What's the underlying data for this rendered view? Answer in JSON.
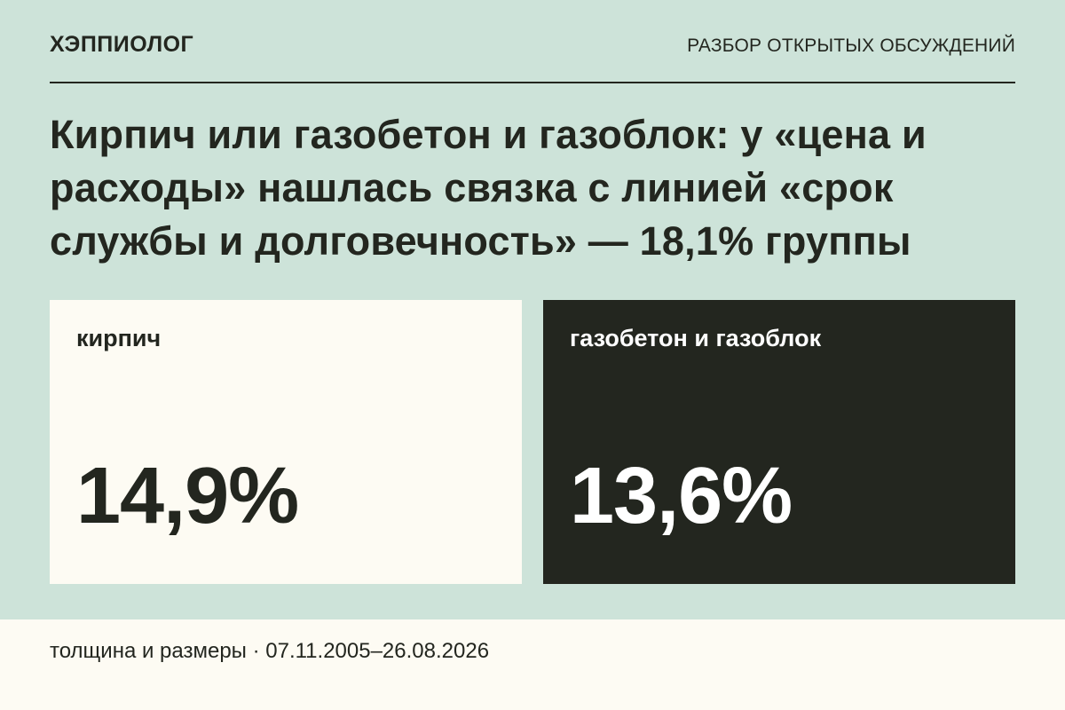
{
  "header": {
    "brand": "ХЭППИОЛОГ",
    "section_label": "РАЗБОР ОТКРЫТЫХ ОБСУЖДЕНИЙ"
  },
  "headline": "Кирпич или газобетон и газоблок: у «цена и расходы» нашлась связка с линией «срок службы и долговечность» — 18,1% группы",
  "cards": [
    {
      "label": "кирпич",
      "value": "14,9%"
    },
    {
      "label": "газобетон и газоблок",
      "value": "13,6%"
    }
  ],
  "footer": {
    "text": "толщина и размеры · 07.11.2005–26.08.2026"
  },
  "colors": {
    "background": "#cde3d9",
    "light_card": "#fdfbf3",
    "dark_card": "#23261f",
    "text_dark": "#23261f",
    "text_light": "#ffffff"
  }
}
